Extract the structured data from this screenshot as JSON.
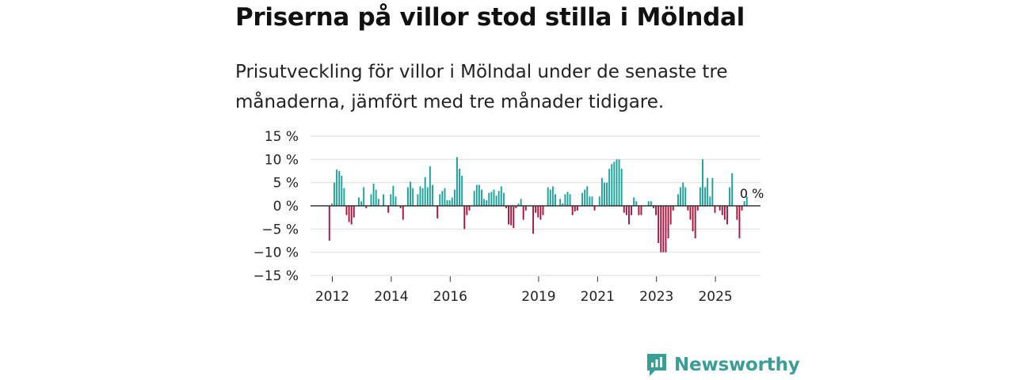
{
  "header": {
    "title": "Priserna på villor stod stilla i Mölndal",
    "subtitle": "Prisutveckling för villor i Mölndal under de senaste tre månaderna, jämfört med tre månader tidigare."
  },
  "brand": {
    "name": "Newsworthy",
    "color": "#3a9e97"
  },
  "colors": {
    "positive": "#1aa39a",
    "negative": "#a6163f",
    "grid": "#dddddd",
    "zero": "#333333"
  },
  "chart_data": {
    "type": "bar",
    "title": "Priserna på villor stod stilla i Mölndal",
    "ylabel": "",
    "xlabel": "",
    "ylim": [
      -15,
      15
    ],
    "yticks": [
      15,
      10,
      5,
      0,
      -5,
      -10,
      -15
    ],
    "ytick_labels": [
      "15 %",
      "10 %",
      "5 %",
      "0 %",
      "−5 %",
      "−10 %",
      "−15 %"
    ],
    "xticks": [
      2012,
      2014,
      2016,
      2019,
      2021,
      2023,
      2025
    ],
    "xtick_labels": [
      "2012",
      "2014",
      "2016",
      "2019",
      "2021",
      "2023",
      "2025"
    ],
    "x_start": 2011.9,
    "x_step": 0.08333,
    "end_label": "0 %",
    "values": [
      -7.5,
      0.5,
      5,
      7.8,
      7.5,
      6.5,
      3.8,
      -2,
      -3.5,
      -4,
      -2.5,
      0,
      1.8,
      1,
      4,
      -0.5,
      0,
      2.5,
      4.8,
      3.5,
      1.5,
      0,
      2.5,
      0,
      -1.5,
      2.5,
      4.3,
      2,
      0,
      -0.5,
      -3,
      0,
      4,
      5.2,
      3.8,
      0,
      2.5,
      4.2,
      3.8,
      6.2,
      4,
      8.5,
      4.5,
      0,
      -2.7,
      2.5,
      3.2,
      3.8,
      1.2,
      1.2,
      1.8,
      3.5,
      10.5,
      8,
      6.5,
      -5,
      -2,
      -1,
      0,
      3.2,
      4.5,
      4.5,
      3.5,
      1.5,
      1.2,
      2.8,
      3,
      3.5,
      2.2,
      3.2,
      4.2,
      2.8,
      -0.5,
      -4,
      -4.2,
      -4.8,
      -0.5,
      0.5,
      1.5,
      -3,
      -1,
      0,
      0,
      -6,
      -1.5,
      -2.5,
      -3,
      -2,
      0,
      4,
      3.5,
      4.2,
      2.5,
      0,
      1.5,
      0.5,
      2.5,
      3,
      2.5,
      -2,
      -1.2,
      -1,
      0,
      2.8,
      3.5,
      4.2,
      2,
      2,
      -1,
      0,
      2,
      6,
      5,
      5,
      8,
      9,
      9.5,
      10,
      10,
      8,
      -1.5,
      -2,
      -4,
      -2,
      1.8,
      1,
      -2,
      -2,
      0,
      0,
      1,
      1,
      -0.5,
      -2,
      -8,
      -10,
      -10,
      -10,
      -7,
      -4,
      -1,
      0,
      2.5,
      4,
      5,
      4,
      -1,
      -3,
      -5.5,
      -7,
      -1,
      4,
      10,
      4,
      6,
      2,
      6,
      -1.5,
      0,
      -1,
      -2,
      -3,
      -4,
      4,
      7,
      0,
      -3,
      -7,
      -1,
      1,
      2,
      0
    ]
  }
}
